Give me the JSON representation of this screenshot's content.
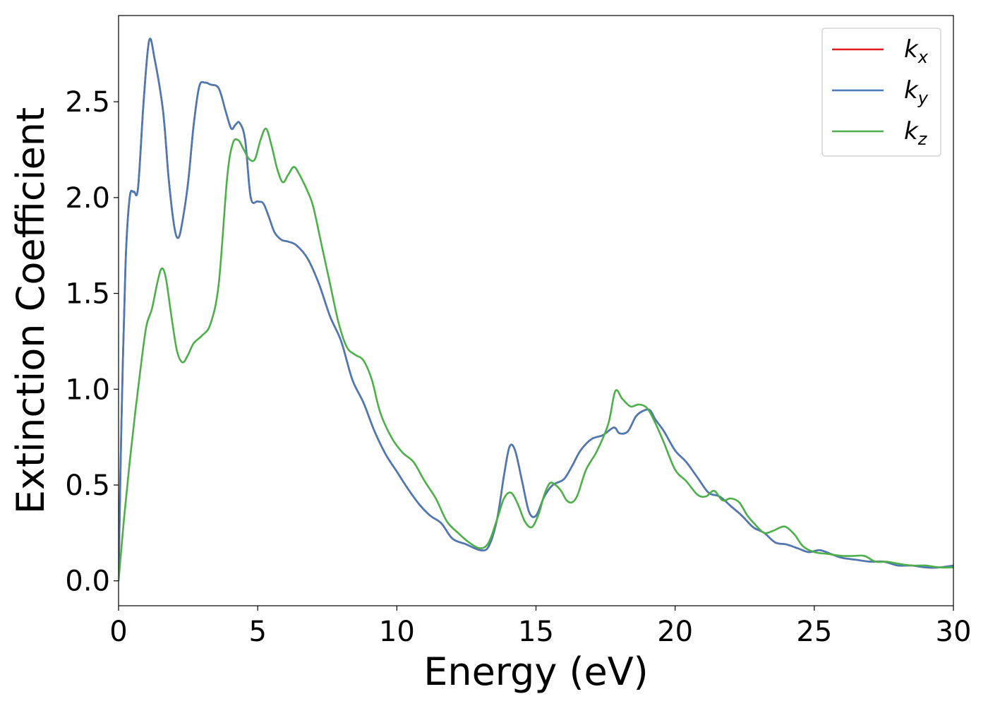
{
  "chart_data": {
    "type": "line",
    "title": "",
    "xlabel": "Energy (eV)",
    "ylabel": "Extinction Coefficient",
    "xlim": [
      0,
      30
    ],
    "ylim": [
      -0.13,
      2.95
    ],
    "xticks": [
      0,
      5,
      10,
      15,
      20,
      25,
      30
    ],
    "xtick_labels": [
      "0",
      "5",
      "10",
      "15",
      "20",
      "25",
      "30"
    ],
    "yticks": [
      0.0,
      0.5,
      1.0,
      1.5,
      2.0,
      2.5
    ],
    "ytick_labels": [
      "0.0",
      "0.5",
      "1.0",
      "1.5",
      "2.0",
      "2.5"
    ],
    "grid": false,
    "legend_position": "top-right",
    "series": [
      {
        "name": "k_x",
        "label_main": "k",
        "label_sub": "x",
        "color": "#e41a1c",
        "x": [
          0,
          0.1,
          0.25,
          0.4,
          0.55,
          0.7,
          0.9,
          1.1,
          1.3,
          1.6,
          1.8,
          2.0,
          2.15,
          2.3,
          2.5,
          2.7,
          2.9,
          3.1,
          3.3,
          3.6,
          3.85,
          4.05,
          4.2,
          4.35,
          4.55,
          4.75,
          5.0,
          5.2,
          5.4,
          5.6,
          5.85,
          6.1,
          6.4,
          6.8,
          7.2,
          7.6,
          8.0,
          8.4,
          8.8,
          9.2,
          9.6,
          10.0,
          10.4,
          10.8,
          11.2,
          11.6,
          12.0,
          12.5,
          13.0,
          13.3,
          13.6,
          13.85,
          14.05,
          14.25,
          14.5,
          14.75,
          15.0,
          15.3,
          15.6,
          16.0,
          16.3,
          16.6,
          17.0,
          17.4,
          17.8,
          18.0,
          18.3,
          18.6,
          18.9,
          19.1,
          19.3,
          19.6,
          20.0,
          20.4,
          20.8,
          21.2,
          21.6,
          22.0,
          22.4,
          22.8,
          23.2,
          23.6,
          24.0,
          24.4,
          24.8,
          25.2,
          25.6,
          26.0,
          26.5,
          27.0,
          27.5,
          28.0,
          28.5,
          29.0,
          29.5,
          30.0
        ],
        "y": [
          0.0,
          0.8,
          1.65,
          2.0,
          2.03,
          2.05,
          2.5,
          2.82,
          2.72,
          2.45,
          2.1,
          1.85,
          1.79,
          1.88,
          2.08,
          2.38,
          2.58,
          2.6,
          2.59,
          2.57,
          2.45,
          2.36,
          2.38,
          2.39,
          2.3,
          2.0,
          1.98,
          1.97,
          1.9,
          1.82,
          1.78,
          1.77,
          1.75,
          1.68,
          1.55,
          1.38,
          1.25,
          1.05,
          0.93,
          0.78,
          0.66,
          0.57,
          0.48,
          0.4,
          0.34,
          0.3,
          0.22,
          0.19,
          0.16,
          0.18,
          0.32,
          0.55,
          0.7,
          0.68,
          0.52,
          0.36,
          0.34,
          0.44,
          0.5,
          0.53,
          0.6,
          0.68,
          0.74,
          0.76,
          0.8,
          0.77,
          0.78,
          0.86,
          0.89,
          0.89,
          0.84,
          0.78,
          0.68,
          0.62,
          0.54,
          0.46,
          0.44,
          0.39,
          0.34,
          0.28,
          0.25,
          0.2,
          0.19,
          0.17,
          0.15,
          0.16,
          0.14,
          0.12,
          0.11,
          0.1,
          0.1,
          0.08,
          0.08,
          0.07,
          0.07,
          0.08
        ]
      },
      {
        "name": "k_y",
        "label_main": "k",
        "label_sub": "y",
        "color": "#4a7ab5",
        "x": [
          0,
          0.1,
          0.25,
          0.4,
          0.55,
          0.7,
          0.9,
          1.1,
          1.3,
          1.6,
          1.8,
          2.0,
          2.15,
          2.3,
          2.5,
          2.7,
          2.9,
          3.1,
          3.3,
          3.6,
          3.85,
          4.05,
          4.2,
          4.35,
          4.55,
          4.75,
          5.0,
          5.2,
          5.4,
          5.6,
          5.85,
          6.1,
          6.4,
          6.8,
          7.2,
          7.6,
          8.0,
          8.4,
          8.8,
          9.2,
          9.6,
          10.0,
          10.4,
          10.8,
          11.2,
          11.6,
          12.0,
          12.5,
          13.0,
          13.3,
          13.6,
          13.85,
          14.05,
          14.25,
          14.5,
          14.75,
          15.0,
          15.3,
          15.6,
          16.0,
          16.3,
          16.6,
          17.0,
          17.4,
          17.8,
          18.0,
          18.3,
          18.6,
          18.9,
          19.1,
          19.3,
          19.6,
          20.0,
          20.4,
          20.8,
          21.2,
          21.6,
          22.0,
          22.4,
          22.8,
          23.2,
          23.6,
          24.0,
          24.4,
          24.8,
          25.2,
          25.6,
          26.0,
          26.5,
          27.0,
          27.5,
          28.0,
          28.5,
          29.0,
          29.5,
          30.0
        ],
        "y": [
          0.0,
          0.8,
          1.65,
          2.0,
          2.03,
          2.05,
          2.5,
          2.82,
          2.72,
          2.45,
          2.1,
          1.85,
          1.79,
          1.88,
          2.08,
          2.38,
          2.58,
          2.6,
          2.59,
          2.57,
          2.45,
          2.36,
          2.38,
          2.39,
          2.3,
          2.0,
          1.98,
          1.97,
          1.9,
          1.82,
          1.78,
          1.77,
          1.75,
          1.68,
          1.55,
          1.38,
          1.25,
          1.05,
          0.93,
          0.78,
          0.66,
          0.57,
          0.48,
          0.4,
          0.34,
          0.3,
          0.22,
          0.19,
          0.16,
          0.18,
          0.32,
          0.55,
          0.7,
          0.68,
          0.52,
          0.36,
          0.34,
          0.44,
          0.5,
          0.53,
          0.6,
          0.68,
          0.74,
          0.76,
          0.8,
          0.77,
          0.78,
          0.86,
          0.89,
          0.89,
          0.84,
          0.78,
          0.68,
          0.62,
          0.54,
          0.46,
          0.44,
          0.39,
          0.34,
          0.28,
          0.25,
          0.2,
          0.19,
          0.17,
          0.15,
          0.16,
          0.14,
          0.12,
          0.11,
          0.1,
          0.1,
          0.08,
          0.08,
          0.07,
          0.07,
          0.08
        ]
      },
      {
        "name": "k_z",
        "label_main": "k",
        "label_sub": "z",
        "color": "#4daf4a",
        "x": [
          0,
          0.2,
          0.4,
          0.6,
          0.8,
          1.0,
          1.2,
          1.4,
          1.55,
          1.7,
          1.9,
          2.1,
          2.3,
          2.5,
          2.7,
          3.0,
          3.3,
          3.6,
          3.9,
          4.1,
          4.3,
          4.5,
          4.7,
          4.9,
          5.1,
          5.3,
          5.5,
          5.7,
          5.9,
          6.1,
          6.3,
          6.5,
          6.8,
          7.0,
          7.3,
          7.6,
          7.9,
          8.2,
          8.5,
          8.8,
          9.1,
          9.4,
          9.8,
          10.2,
          10.6,
          11.0,
          11.4,
          11.8,
          12.2,
          12.6,
          13.0,
          13.3,
          13.6,
          13.85,
          14.1,
          14.35,
          14.6,
          14.85,
          15.1,
          15.3,
          15.5,
          15.7,
          15.9,
          16.1,
          16.3,
          16.5,
          16.8,
          17.2,
          17.6,
          17.85,
          18.1,
          18.4,
          18.7,
          19.0,
          19.3,
          19.6,
          20.0,
          20.4,
          20.8,
          21.1,
          21.4,
          21.7,
          22.0,
          22.3,
          22.6,
          22.9,
          23.2,
          23.5,
          23.8,
          24.0,
          24.3,
          24.6,
          25.0,
          25.5,
          26.0,
          26.4,
          26.8,
          27.2,
          27.6,
          28.0,
          28.5,
          29.0,
          29.5,
          30.0
        ],
        "y": [
          0.0,
          0.33,
          0.62,
          0.88,
          1.12,
          1.33,
          1.42,
          1.56,
          1.63,
          1.58,
          1.38,
          1.2,
          1.14,
          1.18,
          1.24,
          1.28,
          1.34,
          1.55,
          2.1,
          2.28,
          2.3,
          2.25,
          2.2,
          2.2,
          2.3,
          2.36,
          2.27,
          2.15,
          2.08,
          2.12,
          2.16,
          2.12,
          2.03,
          1.95,
          1.75,
          1.55,
          1.35,
          1.22,
          1.18,
          1.15,
          1.05,
          0.88,
          0.75,
          0.67,
          0.62,
          0.52,
          0.43,
          0.31,
          0.25,
          0.2,
          0.17,
          0.2,
          0.32,
          0.43,
          0.46,
          0.4,
          0.31,
          0.28,
          0.35,
          0.45,
          0.51,
          0.5,
          0.47,
          0.42,
          0.41,
          0.45,
          0.58,
          0.68,
          0.82,
          0.99,
          0.95,
          0.91,
          0.92,
          0.9,
          0.82,
          0.72,
          0.58,
          0.52,
          0.45,
          0.44,
          0.47,
          0.42,
          0.43,
          0.41,
          0.34,
          0.29,
          0.25,
          0.26,
          0.28,
          0.28,
          0.24,
          0.18,
          0.15,
          0.14,
          0.13,
          0.13,
          0.13,
          0.1,
          0.1,
          0.09,
          0.08,
          0.08,
          0.07,
          0.07
        ]
      }
    ]
  }
}
